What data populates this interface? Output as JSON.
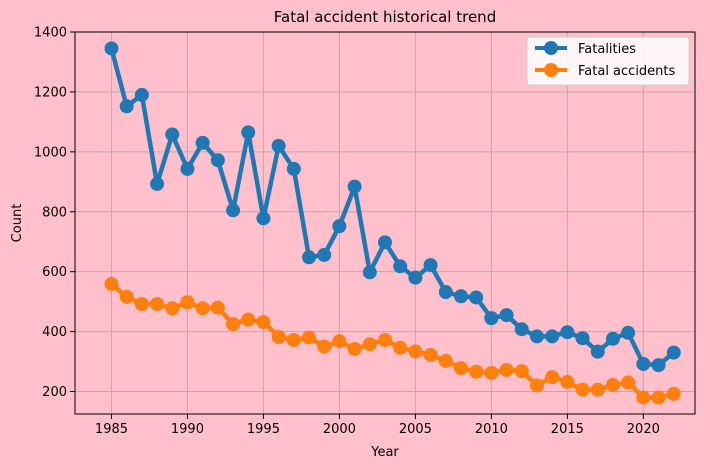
{
  "chart_data": {
    "type": "line",
    "title": "Fatal accident historical trend",
    "xlabel": "Year",
    "ylabel": "Count",
    "xlim": [
      1982.6,
      2023.4
    ],
    "ylim": [
      125,
      1400
    ],
    "xticks": [
      1985,
      1990,
      1995,
      2000,
      2005,
      2010,
      2015,
      2020
    ],
    "yticks": [
      200,
      400,
      600,
      800,
      1000,
      1200,
      1400
    ],
    "grid": true,
    "legend_position": "top-right",
    "x": [
      1985,
      1986,
      1987,
      1988,
      1989,
      1990,
      1991,
      1992,
      1993,
      1994,
      1995,
      1996,
      1997,
      1998,
      1999,
      2000,
      2001,
      2002,
      2003,
      2004,
      2005,
      2006,
      2007,
      2008,
      2009,
      2010,
      2011,
      2012,
      2013,
      2014,
      2015,
      2016,
      2017,
      2018,
      2019,
      2020,
      2021,
      2022
    ],
    "series": [
      {
        "name": "Fatalities",
        "color": "#1f77b4",
        "values": [
          1345,
          1152,
          1190,
          893,
          1058,
          943,
          1030,
          972,
          805,
          1065,
          778,
          1020,
          943,
          648,
          656,
          752,
          884,
          598,
          698,
          618,
          580,
          622,
          532,
          518,
          514,
          445,
          455,
          408,
          384,
          384,
          398,
          378,
          333,
          376,
          396,
          292,
          288,
          330
        ]
      },
      {
        "name": "Fatal accidents",
        "color": "#ff7f0e",
        "values": [
          559,
          516,
          492,
          492,
          478,
          498,
          478,
          480,
          425,
          440,
          432,
          382,
          372,
          380,
          350,
          368,
          342,
          358,
          372,
          346,
          334,
          322,
          302,
          278,
          266,
          262,
          272,
          268,
          220,
          248,
          232,
          206,
          206,
          222,
          230,
          180,
          180,
          192
        ]
      }
    ]
  }
}
